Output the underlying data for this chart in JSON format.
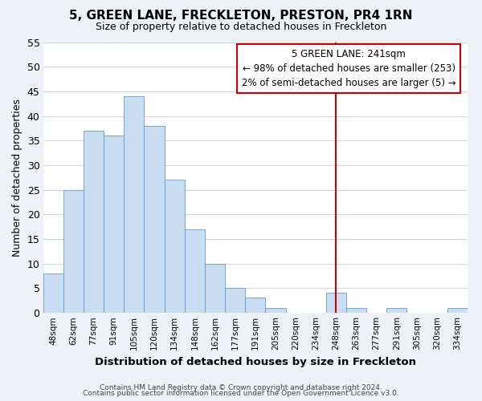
{
  "title": "5, GREEN LANE, FRECKLETON, PRESTON, PR4 1RN",
  "subtitle": "Size of property relative to detached houses in Freckleton",
  "xlabel": "Distribution of detached houses by size in Freckleton",
  "ylabel": "Number of detached properties",
  "footer_line1": "Contains HM Land Registry data © Crown copyright and database right 2024.",
  "footer_line2": "Contains public sector information licensed under the Open Government Licence v3.0.",
  "bin_labels": [
    "48sqm",
    "62sqm",
    "77sqm",
    "91sqm",
    "105sqm",
    "120sqm",
    "134sqm",
    "148sqm",
    "162sqm",
    "177sqm",
    "191sqm",
    "205sqm",
    "220sqm",
    "234sqm",
    "248sqm",
    "263sqm",
    "277sqm",
    "291sqm",
    "305sqm",
    "320sqm",
    "334sqm"
  ],
  "bar_heights": [
    8,
    25,
    37,
    36,
    44,
    38,
    27,
    17,
    10,
    5,
    3,
    1,
    0,
    0,
    4,
    1,
    0,
    1,
    0,
    0,
    1
  ],
  "bar_color": "#c8ddf0",
  "bar_edge_color": "#6699cc",
  "vline_color": "#cc0000",
  "annotation_box_color": "#cc0000",
  "annotation_line1": "5 GREEN LANE: 241sqm",
  "annotation_line2": "← 98% of detached houses are smaller (253)",
  "annotation_line3": "2% of semi-detached houses are larger (5) →",
  "grid_color": "#d0d8e8",
  "figure_bg_color": "#eef2f7",
  "axes_bg_color": "#ffffff",
  "ylim": [
    0,
    55
  ],
  "yticks": [
    0,
    5,
    10,
    15,
    20,
    25,
    30,
    35,
    40,
    45,
    50,
    55
  ],
  "vline_index": 14
}
